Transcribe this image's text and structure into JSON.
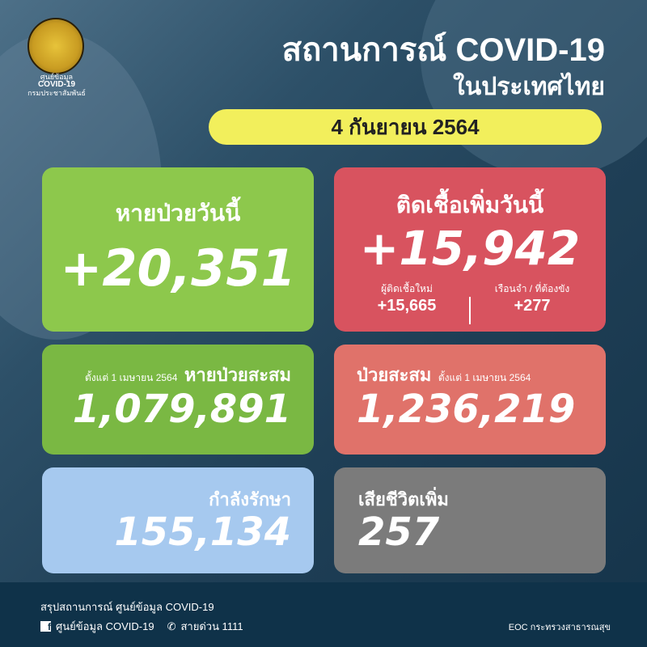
{
  "logo": {
    "line1": "ศูนย์ข้อมูล",
    "line2": "COVID-19",
    "line3": "กรมประชาสัมพันธ์"
  },
  "header": {
    "title": "สถานการณ์ COVID-19",
    "subtitle": "ในประเทศไทย",
    "date": "4 กันยายน 2564"
  },
  "recovered_today": {
    "label": "หายป่วยวันนี้",
    "value": "+20,351"
  },
  "new_cases_today": {
    "label": "ติดเชื้อเพิ่มวันนี้",
    "value": "+15,942",
    "breakdown": [
      {
        "label": "ผู้ติดเชื้อใหม่",
        "value": "+15,665"
      },
      {
        "label": "เรือนจำ / ที่ต้องขัง",
        "value": "+277"
      }
    ]
  },
  "recovered_total": {
    "since": "ตั้งแต่ 1 เมษายน 2564",
    "label": "หายป่วยสะสม",
    "value": "1,079,891"
  },
  "cases_total": {
    "label": "ป่วยสะสม",
    "since": "ตั้งแต่ 1 เมษายน 2564",
    "value": "1,236,219"
  },
  "in_treatment": {
    "label": "กำลังรักษา",
    "value": "155,134"
  },
  "deaths": {
    "label": "เสียชีวิตเพิ่ม",
    "value": "257"
  },
  "footer": {
    "summary": "สรุปสถานการณ์ ศูนย์ข้อมูล COVID-19",
    "facebook": "ศูนย์ข้อมูล COVID-19",
    "hotline": "สายด่วน 1111",
    "source": "EOC กระทรวงสาธารณสุข",
    "icons": [
      "facebook-icon",
      "phone-icon"
    ]
  },
  "colors": {
    "green": "#8dc84c",
    "red": "#d8535f",
    "salmon": "#e0726a",
    "blue": "#a6c9ef",
    "gray": "#7b7b7b",
    "yellow": "#f2ef5c",
    "navy": "#0f3249"
  }
}
